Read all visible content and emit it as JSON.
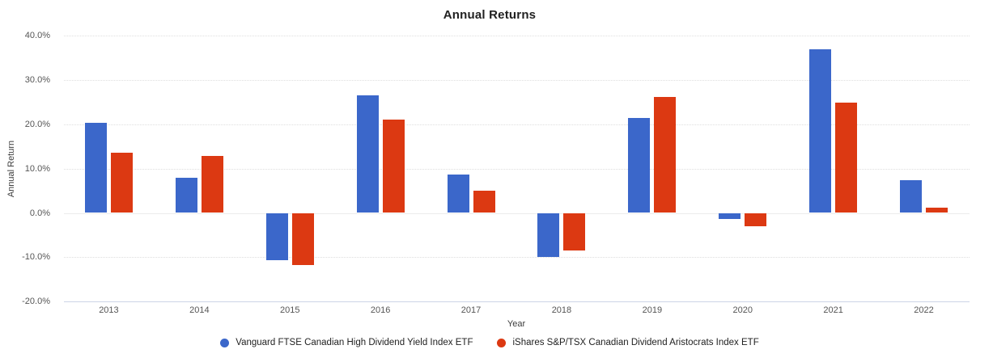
{
  "chart_data": {
    "type": "bar",
    "title": "Annual Returns",
    "xlabel": "Year",
    "ylabel": "Annual Return",
    "categories": [
      "2013",
      "2014",
      "2015",
      "2016",
      "2017",
      "2018",
      "2019",
      "2020",
      "2021",
      "2022"
    ],
    "series": [
      {
        "name": "Vanguard FTSE Canadian High Dividend Yield Index ETF",
        "color": "#3b67ca",
        "values": [
          20.3,
          8.0,
          -10.6,
          26.6,
          8.6,
          -9.9,
          21.4,
          -1.4,
          36.9,
          7.4
        ]
      },
      {
        "name": "iShares S&P/TSX Canadian Dividend Aristocrats Index ETF",
        "color": "#dc3912",
        "values": [
          13.5,
          12.8,
          -11.7,
          21.0,
          5.0,
          -8.5,
          26.1,
          -3.0,
          24.8,
          1.1
        ]
      }
    ],
    "ylim": [
      -20,
      40
    ],
    "yticks": [
      40,
      30,
      20,
      10,
      0,
      -10,
      -20
    ],
    "ytick_labels": [
      "40.0%",
      "30.0%",
      "20.0%",
      "10.0%",
      "0.0%",
      "-10.0%",
      "-20.0%"
    ],
    "grid": true,
    "legend_position": "bottom"
  }
}
